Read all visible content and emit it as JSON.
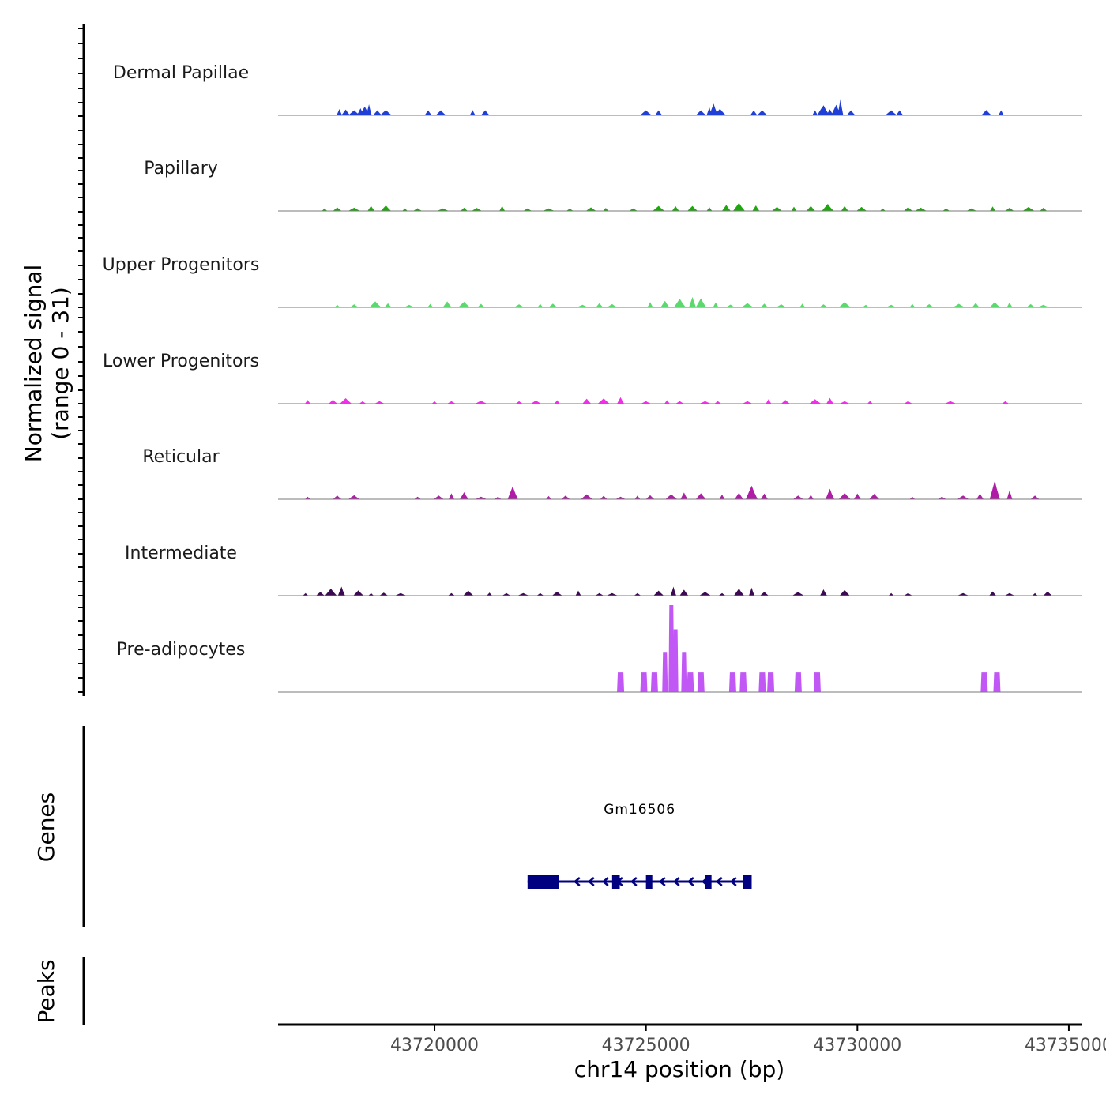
{
  "chart_data": {
    "type": "coverage-track",
    "xlabel": "chr14 position (bp)",
    "xlim": [
      43716300,
      43735300
    ],
    "x_ticks": [
      43720000,
      43725000,
      43730000,
      43735000
    ],
    "x_tick_labels": [
      "43720000",
      "43725000",
      "43730000",
      "43735000"
    ],
    "signal_axis": {
      "label_line1": "Normalized signal",
      "label_line2": "(range 0 - 31)",
      "ylim": [
        0,
        31
      ]
    },
    "series": [
      {
        "name": "Dermal Papillae",
        "color": "#1f3fd6",
        "peaks": [
          [
            43717750,
            2.5
          ],
          [
            43717900,
            2.3
          ],
          [
            43718100,
            2.0
          ],
          [
            43718250,
            2.8
          ],
          [
            43718350,
            3.5
          ],
          [
            43718450,
            4.4
          ],
          [
            43718650,
            2.0
          ],
          [
            43718850,
            2.1
          ],
          [
            43719850,
            2.0
          ],
          [
            43720150,
            2.0
          ],
          [
            43720900,
            2.1
          ],
          [
            43721200,
            2.0
          ],
          [
            43725000,
            2.0
          ],
          [
            43725300,
            2.0
          ],
          [
            43726300,
            2.0
          ],
          [
            43726500,
            3.2
          ],
          [
            43726600,
            4.6
          ],
          [
            43726750,
            2.6
          ],
          [
            43727550,
            2.0
          ],
          [
            43727750,
            2.0
          ],
          [
            43729000,
            2.0
          ],
          [
            43729150,
            2.8
          ],
          [
            43729200,
            4.0
          ],
          [
            43729350,
            2.4
          ],
          [
            43729500,
            4.2
          ],
          [
            43729600,
            6.5
          ],
          [
            43729850,
            2.0
          ],
          [
            43730800,
            2.0
          ],
          [
            43731000,
            2.0
          ],
          [
            43733050,
            2.1
          ],
          [
            43733400,
            2.0
          ]
        ]
      },
      {
        "name": "Papillary",
        "color": "#1ea80d",
        "peaks": [
          [
            43717400,
            1.0
          ],
          [
            43717700,
            1.4
          ],
          [
            43718100,
            1.3
          ],
          [
            43718500,
            2.0
          ],
          [
            43718850,
            2.2
          ],
          [
            43719300,
            1.0
          ],
          [
            43719600,
            1.1
          ],
          [
            43720200,
            1.0
          ],
          [
            43720700,
            1.3
          ],
          [
            43721000,
            1.2
          ],
          [
            43721600,
            2.0
          ],
          [
            43722200,
            1.0
          ],
          [
            43722700,
            1.0
          ],
          [
            43723200,
            0.9
          ],
          [
            43723700,
            1.4
          ],
          [
            43724050,
            1.2
          ],
          [
            43724700,
            1.0
          ],
          [
            43725300,
            2.0
          ],
          [
            43725700,
            1.9
          ],
          [
            43726100,
            2.0
          ],
          [
            43726500,
            1.5
          ],
          [
            43726900,
            2.4
          ],
          [
            43727200,
            3.2
          ],
          [
            43727600,
            2.2
          ],
          [
            43728100,
            1.6
          ],
          [
            43728500,
            1.7
          ],
          [
            43728900,
            2.0
          ],
          [
            43729300,
            2.8
          ],
          [
            43729700,
            2.0
          ],
          [
            43730100,
            1.6
          ],
          [
            43730600,
            1.0
          ],
          [
            43731200,
            1.5
          ],
          [
            43731500,
            1.3
          ],
          [
            43732100,
            1.0
          ],
          [
            43732700,
            1.0
          ],
          [
            43733200,
            1.8
          ],
          [
            43733600,
            1.3
          ],
          [
            43734050,
            1.6
          ],
          [
            43734400,
            1.3
          ]
        ]
      },
      {
        "name": "Upper Progenitors",
        "color": "#5cd96e",
        "peaks": [
          [
            43717700,
            1.0
          ],
          [
            43718100,
            1.2
          ],
          [
            43718600,
            2.4
          ],
          [
            43718900,
            1.6
          ],
          [
            43719400,
            1.0
          ],
          [
            43719900,
            1.4
          ],
          [
            43720300,
            2.4
          ],
          [
            43720700,
            2.2
          ],
          [
            43721100,
            1.4
          ],
          [
            43722000,
            1.2
          ],
          [
            43722500,
            1.4
          ],
          [
            43722800,
            1.5
          ],
          [
            43723500,
            1.0
          ],
          [
            43723900,
            1.7
          ],
          [
            43724200,
            1.3
          ],
          [
            43725100,
            2.1
          ],
          [
            43725450,
            2.6
          ],
          [
            43725800,
            3.4
          ],
          [
            43726100,
            4.1
          ],
          [
            43726300,
            3.6
          ],
          [
            43726650,
            2.0
          ],
          [
            43727000,
            1.1
          ],
          [
            43727400,
            1.7
          ],
          [
            43727800,
            1.5
          ],
          [
            43728200,
            1.2
          ],
          [
            43728700,
            1.5
          ],
          [
            43729200,
            1.2
          ],
          [
            43729700,
            2.1
          ],
          [
            43730200,
            1.0
          ],
          [
            43730800,
            1.0
          ],
          [
            43731300,
            1.4
          ],
          [
            43731700,
            1.3
          ],
          [
            43732400,
            1.4
          ],
          [
            43732800,
            1.8
          ],
          [
            43733250,
            2.1
          ],
          [
            43733600,
            2.0
          ],
          [
            43734100,
            1.3
          ],
          [
            43734400,
            1.0
          ]
        ]
      },
      {
        "name": "Lower Progenitors",
        "color": "#f22eea",
        "peaks": [
          [
            43717000,
            1.5
          ],
          [
            43717600,
            1.6
          ],
          [
            43717900,
            2.2
          ],
          [
            43718300,
            1.0
          ],
          [
            43718700,
            1.0
          ],
          [
            43720000,
            1.0
          ],
          [
            43720400,
            1.0
          ],
          [
            43721100,
            1.2
          ],
          [
            43722000,
            1.0
          ],
          [
            43722400,
            1.3
          ],
          [
            43722900,
            1.4
          ],
          [
            43723600,
            2.0
          ],
          [
            43724000,
            2.1
          ],
          [
            43724400,
            2.6
          ],
          [
            43725000,
            1.0
          ],
          [
            43725500,
            1.4
          ],
          [
            43725800,
            1.0
          ],
          [
            43726400,
            1.0
          ],
          [
            43726700,
            1.0
          ],
          [
            43727400,
            1.0
          ],
          [
            43727900,
            1.8
          ],
          [
            43728300,
            1.5
          ],
          [
            43729000,
            1.8
          ],
          [
            43729350,
            2.3
          ],
          [
            43729700,
            1.0
          ],
          [
            43730300,
            1.1
          ],
          [
            43731200,
            1.0
          ],
          [
            43732200,
            1.0
          ],
          [
            43733500,
            1.0
          ]
        ]
      },
      {
        "name": "Reticular",
        "color": "#b01ba8",
        "peaks": [
          [
            43717000,
            1.0
          ],
          [
            43717700,
            1.5
          ],
          [
            43718100,
            1.6
          ],
          [
            43719600,
            1.0
          ],
          [
            43720100,
            1.5
          ],
          [
            43720400,
            2.4
          ],
          [
            43720700,
            2.8
          ],
          [
            43721100,
            1.0
          ],
          [
            43721500,
            1.0
          ],
          [
            43721850,
            5.2
          ],
          [
            43722700,
            1.3
          ],
          [
            43723100,
            1.5
          ],
          [
            43723600,
            2.0
          ],
          [
            43724000,
            1.4
          ],
          [
            43724400,
            1.0
          ],
          [
            43724800,
            1.5
          ],
          [
            43725100,
            1.6
          ],
          [
            43725600,
            2.0
          ],
          [
            43725900,
            2.7
          ],
          [
            43726300,
            2.4
          ],
          [
            43726800,
            1.9
          ],
          [
            43727200,
            2.6
          ],
          [
            43727500,
            5.4
          ],
          [
            43727800,
            2.3
          ],
          [
            43728600,
            1.5
          ],
          [
            43728900,
            1.8
          ],
          [
            43729350,
            4.2
          ],
          [
            43729700,
            2.5
          ],
          [
            43730000,
            2.3
          ],
          [
            43730400,
            2.2
          ],
          [
            43731300,
            1.0
          ],
          [
            43732000,
            1.0
          ],
          [
            43732500,
            1.5
          ],
          [
            43732900,
            2.3
          ],
          [
            43733250,
            7.4
          ],
          [
            43733600,
            3.6
          ],
          [
            43734200,
            1.5
          ]
        ]
      },
      {
        "name": "Intermediate",
        "color": "#3b0a52",
        "peaks": [
          [
            43716950,
            1.0
          ],
          [
            43717300,
            1.5
          ],
          [
            43717550,
            2.8
          ],
          [
            43717800,
            3.6
          ],
          [
            43718200,
            2.1
          ],
          [
            43718500,
            1.0
          ],
          [
            43718800,
            1.2
          ],
          [
            43719200,
            1.0
          ],
          [
            43720400,
            1.0
          ],
          [
            43720800,
            2.0
          ],
          [
            43721300,
            1.2
          ],
          [
            43721700,
            1.0
          ],
          [
            43722100,
            1.0
          ],
          [
            43722500,
            1.0
          ],
          [
            43722900,
            1.6
          ],
          [
            43723400,
            2.0
          ],
          [
            43723900,
            1.0
          ],
          [
            43724200,
            1.0
          ],
          [
            43724800,
            1.0
          ],
          [
            43725300,
            2.0
          ],
          [
            43725650,
            3.6
          ],
          [
            43725900,
            2.4
          ],
          [
            43726400,
            1.5
          ],
          [
            43726800,
            1.0
          ],
          [
            43727200,
            2.8
          ],
          [
            43727500,
            3.2
          ],
          [
            43727800,
            1.5
          ],
          [
            43728600,
            1.5
          ],
          [
            43729200,
            2.5
          ],
          [
            43729700,
            2.3
          ],
          [
            43730800,
            1.0
          ],
          [
            43731200,
            1.0
          ],
          [
            43732500,
            1.0
          ],
          [
            43733200,
            1.7
          ],
          [
            43733600,
            1.0
          ],
          [
            43734200,
            1.0
          ],
          [
            43734500,
            1.7
          ]
        ]
      },
      {
        "name": "Pre-adipocytes",
        "color": "#c158f5",
        "peaks": [
          [
            43724400,
            7.0
          ],
          [
            43724950,
            7.0
          ],
          [
            43725200,
            7.0
          ],
          [
            43725450,
            14.3
          ],
          [
            43725600,
            31.0
          ],
          [
            43725700,
            22.4
          ],
          [
            43725900,
            14.3
          ],
          [
            43726050,
            7.0
          ],
          [
            43726300,
            7.0
          ],
          [
            43727050,
            7.0
          ],
          [
            43727300,
            7.0
          ],
          [
            43727750,
            7.0
          ],
          [
            43727950,
            7.0
          ],
          [
            43728600,
            7.0
          ],
          [
            43729050,
            7.0
          ],
          [
            43733000,
            7.0
          ],
          [
            43733300,
            7.0
          ]
        ]
      }
    ],
    "genes": {
      "label": "Genes",
      "items": [
        {
          "name": "Gm16506",
          "start": 43722200,
          "end": 43727500,
          "strand": "-",
          "color": "#000080",
          "exons": [
            [
              43722200,
              43722950
            ],
            [
              43724200,
              43724380
            ],
            [
              43725000,
              43725150
            ],
            [
              43726400,
              43726550
            ],
            [
              43727300,
              43727500
            ]
          ]
        }
      ]
    },
    "peaks_track": {
      "label": "Peaks",
      "items": []
    }
  }
}
